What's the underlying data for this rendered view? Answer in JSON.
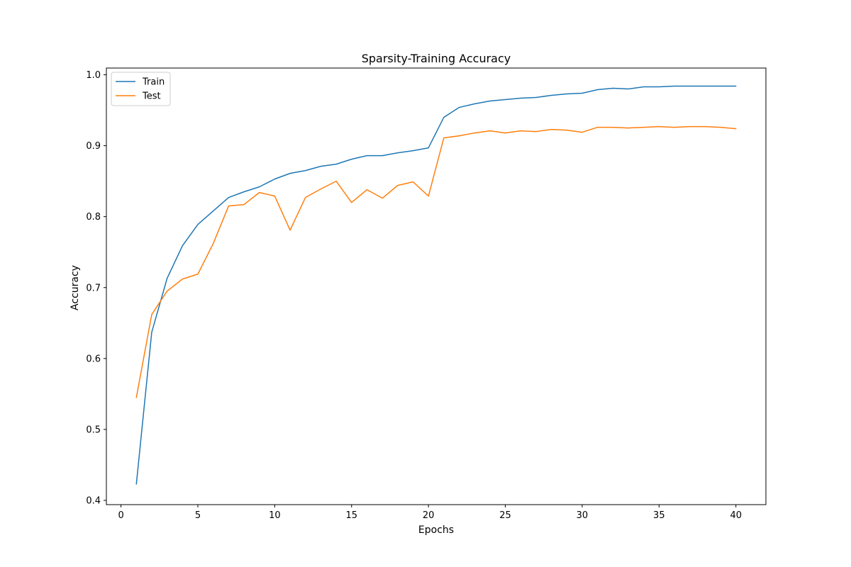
{
  "chart_data": {
    "type": "line",
    "title": "Sparsity-Training Accuracy",
    "xlabel": "Epochs",
    "ylabel": "Accuracy",
    "xlim": [
      -0.95,
      41.95
    ],
    "ylim": [
      0.394,
      1.0095
    ],
    "xticks": [
      0,
      5,
      10,
      15,
      20,
      25,
      30,
      35,
      40
    ],
    "xtick_labels": [
      "0",
      "5",
      "10",
      "15",
      "20",
      "25",
      "30",
      "35",
      "40"
    ],
    "yticks": [
      0.4,
      0.5,
      0.6,
      0.7,
      0.8,
      0.9,
      1.0
    ],
    "ytick_labels": [
      "0.4",
      "0.5",
      "0.6",
      "0.7",
      "0.8",
      "0.9",
      "1.0"
    ],
    "grid": false,
    "legend_position": "top-left",
    "x": [
      1,
      2,
      3,
      4,
      5,
      6,
      7,
      8,
      9,
      10,
      11,
      12,
      13,
      14,
      15,
      16,
      17,
      18,
      19,
      20,
      21,
      22,
      23,
      24,
      25,
      26,
      27,
      28,
      29,
      30,
      31,
      32,
      33,
      34,
      35,
      36,
      37,
      38,
      39,
      40
    ],
    "series": [
      {
        "name": "Train",
        "color": "#1f77b4",
        "values": [
          0.423,
          0.637,
          0.713,
          0.759,
          0.789,
          0.808,
          0.827,
          0.835,
          0.842,
          0.853,
          0.861,
          0.865,
          0.871,
          0.874,
          0.881,
          0.886,
          0.886,
          0.89,
          0.893,
          0.897,
          0.94,
          0.954,
          0.959,
          0.963,
          0.965,
          0.967,
          0.968,
          0.971,
          0.973,
          0.974,
          0.979,
          0.981,
          0.98,
          0.983,
          0.983,
          0.984,
          0.984,
          0.984,
          0.984,
          0.984
        ]
      },
      {
        "name": "Test",
        "color": "#ff7f0e",
        "values": [
          0.545,
          0.662,
          0.695,
          0.712,
          0.719,
          0.762,
          0.815,
          0.817,
          0.834,
          0.829,
          0.781,
          0.827,
          0.839,
          0.85,
          0.82,
          0.838,
          0.826,
          0.844,
          0.849,
          0.829,
          0.911,
          0.914,
          0.918,
          0.921,
          0.918,
          0.921,
          0.92,
          0.923,
          0.922,
          0.919,
          0.926,
          0.926,
          0.925,
          0.926,
          0.927,
          0.926,
          0.927,
          0.927,
          0.926,
          0.924
        ]
      }
    ]
  }
}
